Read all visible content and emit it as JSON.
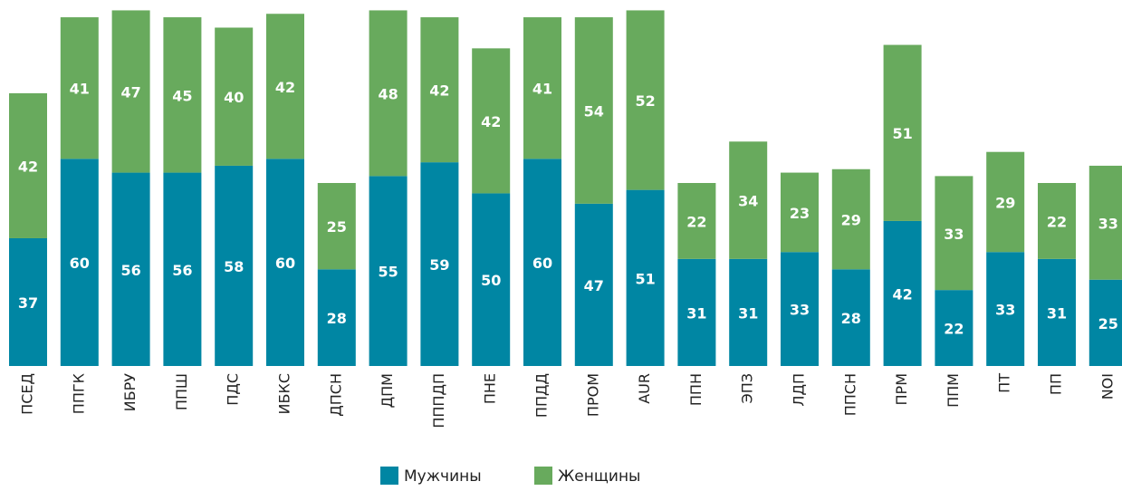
{
  "chart_data": {
    "type": "stacked_bar",
    "categories": [
      "ПСЕД",
      "ППГК",
      "ИБРУ",
      "ППШ",
      "ПДС",
      "ИБКС",
      "ДПСН",
      "ДПМ",
      "ПППДП",
      "ПНЕ",
      "ППДД",
      "ПРОМ",
      "AUR",
      "ППН",
      "ЭПЗ",
      "ЛДП",
      "ППСН",
      "ПРМ",
      "ППМ",
      "ПТ",
      "ПП",
      "NOI"
    ],
    "series": [
      {
        "name": "Мужчины",
        "color": "#0086a3",
        "values": [
          37,
          60,
          56,
          56,
          58,
          60,
          28,
          55,
          59,
          50,
          60,
          47,
          51,
          31,
          31,
          33,
          28,
          42,
          22,
          33,
          31,
          25
        ]
      },
      {
        "name": "Женщины",
        "color": "#68aa5d",
        "values": [
          42,
          41,
          47,
          45,
          40,
          42,
          25,
          48,
          42,
          42,
          41,
          54,
          52,
          22,
          34,
          23,
          29,
          51,
          33,
          29,
          22,
          33
        ]
      }
    ],
    "ylim": [
      0,
      106
    ]
  }
}
